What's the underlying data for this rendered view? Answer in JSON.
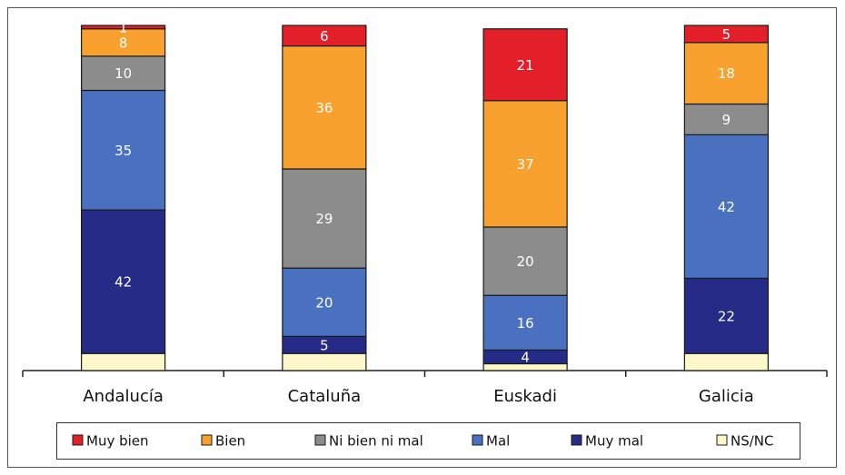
{
  "chart_data": {
    "type": "stacked_bar",
    "categories": [
      "Andalucía",
      "Cataluña",
      "Euskadi",
      "Galicia"
    ],
    "series": [
      {
        "name": "NS/NC",
        "color": "#fdf8c9",
        "values": [
          5,
          5,
          2,
          5
        ],
        "labels": false
      },
      {
        "name": "Muy mal",
        "color": "#252b87",
        "values": [
          42,
          5,
          4,
          22
        ]
      },
      {
        "name": "Mal",
        "color": "#4a70c0",
        "values": [
          35,
          20,
          16,
          42
        ]
      },
      {
        "name": "Ni bien ni mal",
        "color": "#8c8c8c",
        "values": [
          10,
          29,
          20,
          9
        ]
      },
      {
        "name": "Bien",
        "color": "#f9a12e",
        "values": [
          8,
          36,
          37,
          18
        ]
      },
      {
        "name": "Muy bien",
        "color": "#e3202a",
        "values": [
          1,
          6,
          21,
          5
        ]
      }
    ],
    "legend_order": [
      5,
      4,
      3,
      2,
      1,
      0
    ],
    "ylim": [
      0,
      101
    ]
  }
}
